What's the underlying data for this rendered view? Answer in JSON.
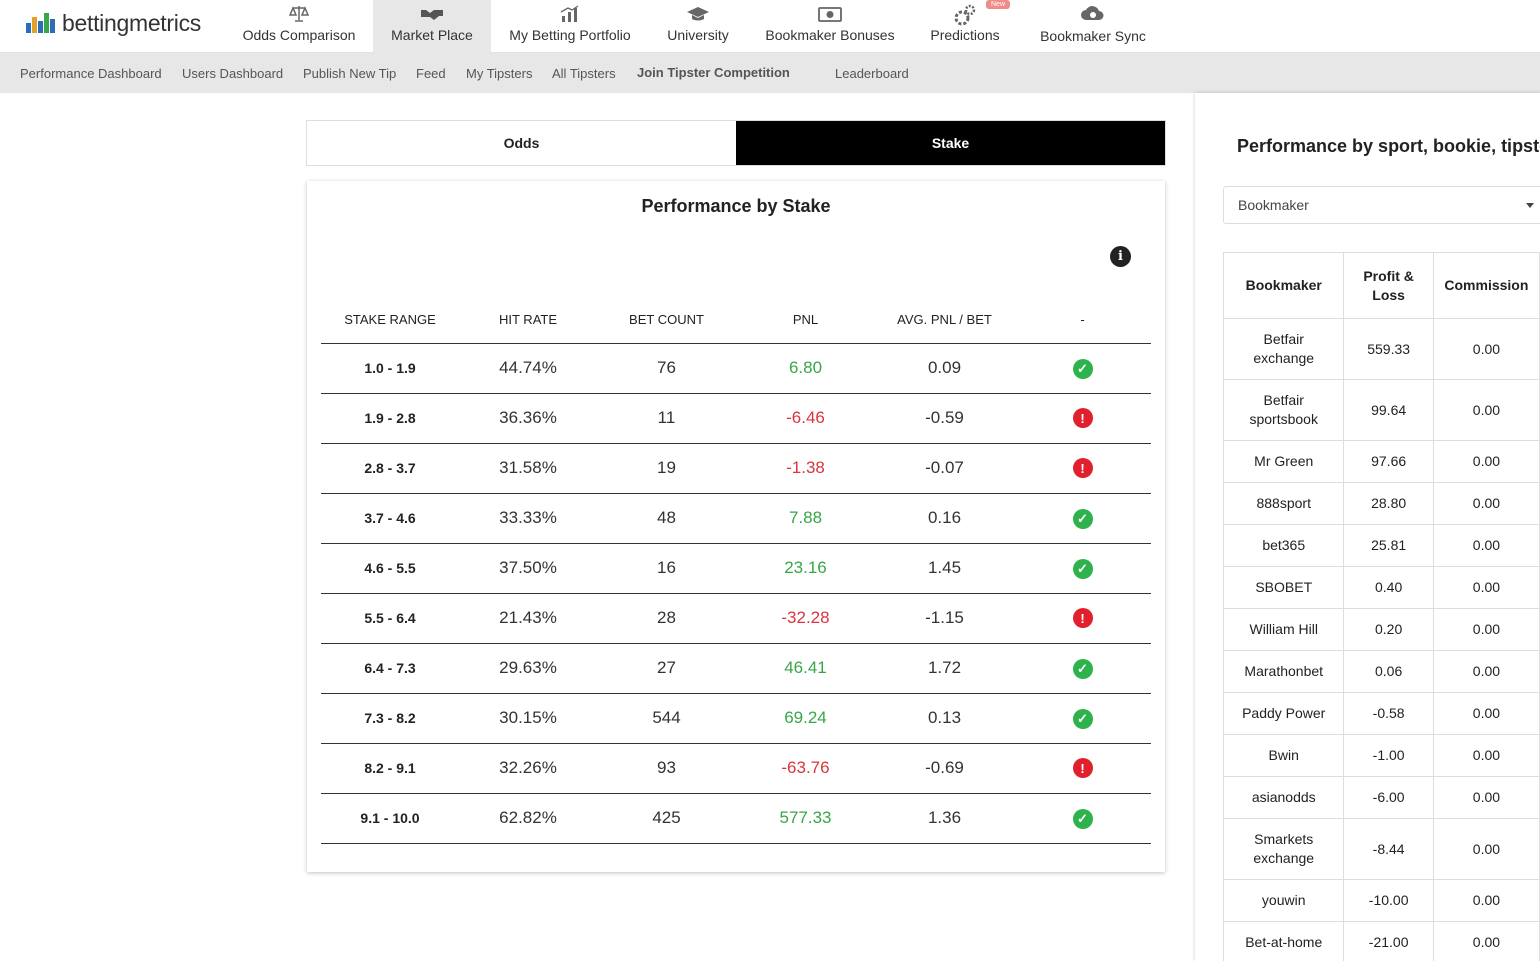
{
  "brand": {
    "name": "bettingmetrics"
  },
  "top_nav": [
    {
      "label": "Odds Comparison",
      "icon": "scale-icon"
    },
    {
      "label": "Market Place",
      "icon": "handshake-icon",
      "active": true
    },
    {
      "label": "My Betting Portfolio",
      "icon": "chart-icon"
    },
    {
      "label": "University",
      "icon": "graduation-cap-icon"
    },
    {
      "label": "Bookmaker Bonuses",
      "icon": "banknote-icon"
    },
    {
      "label": "Predictions",
      "icon": "gears-icon",
      "badge": "New"
    },
    {
      "label": "Bookmaker Sync",
      "icon": "cloud-icon"
    }
  ],
  "sub_nav": [
    "Performance Dashboard",
    "Users Dashboard",
    "Publish New Tip",
    "Feed",
    "My Tipsters",
    "All Tipsters",
    "Join Tipster Competition",
    "Leaderboard"
  ],
  "toggle": {
    "odds": "Odds",
    "stake": "Stake",
    "selected": "Stake"
  },
  "stake_card": {
    "title": "Performance by Stake",
    "headers": [
      "STAKE RANGE",
      "HIT RATE",
      "BET COUNT",
      "PNL",
      "AVG. PNL / BET",
      "-"
    ],
    "rows": [
      {
        "range": "1.0 - 1.9",
        "hit": "44.74%",
        "count": "76",
        "pnl": "6.80",
        "avg": "0.09",
        "ok": true
      },
      {
        "range": "1.9 - 2.8",
        "hit": "36.36%",
        "count": "11",
        "pnl": "-6.46",
        "avg": "-0.59",
        "ok": false
      },
      {
        "range": "2.8 - 3.7",
        "hit": "31.58%",
        "count": "19",
        "pnl": "-1.38",
        "avg": "-0.07",
        "ok": false
      },
      {
        "range": "3.7 - 4.6",
        "hit": "33.33%",
        "count": "48",
        "pnl": "7.88",
        "avg": "0.16",
        "ok": true
      },
      {
        "range": "4.6 - 5.5",
        "hit": "37.50%",
        "count": "16",
        "pnl": "23.16",
        "avg": "1.45",
        "ok": true
      },
      {
        "range": "5.5 - 6.4",
        "hit": "21.43%",
        "count": "28",
        "pnl": "-32.28",
        "avg": "-1.15",
        "ok": false
      },
      {
        "range": "6.4 - 7.3",
        "hit": "29.63%",
        "count": "27",
        "pnl": "46.41",
        "avg": "1.72",
        "ok": true
      },
      {
        "range": "7.3 - 8.2",
        "hit": "30.15%",
        "count": "544",
        "pnl": "69.24",
        "avg": "0.13",
        "ok": true
      },
      {
        "range": "8.2 - 9.1",
        "hit": "32.26%",
        "count": "93",
        "pnl": "-63.76",
        "avg": "-0.69",
        "ok": false
      },
      {
        "range": "9.1 - 10.0",
        "hit": "62.82%",
        "count": "425",
        "pnl": "577.33",
        "avg": "1.36",
        "ok": true
      }
    ]
  },
  "right_panel": {
    "title": "Performance by sport, bookie, tipster",
    "select_value": "Bookmaker",
    "headers": [
      "Bookmaker",
      "Profit & Loss",
      "Commission"
    ],
    "rows": [
      {
        "name": "Betfair exchange",
        "pl": "559.33",
        "commission": "0.00",
        "tall": true
      },
      {
        "name": "Betfair sportsbook",
        "pl": "99.64",
        "commission": "0.00",
        "tall": true
      },
      {
        "name": "Mr Green",
        "pl": "97.66",
        "commission": "0.00"
      },
      {
        "name": "888sport",
        "pl": "28.80",
        "commission": "0.00"
      },
      {
        "name": "bet365",
        "pl": "25.81",
        "commission": "0.00"
      },
      {
        "name": "SBOBET",
        "pl": "0.40",
        "commission": "0.00"
      },
      {
        "name": "William Hill",
        "pl": "0.20",
        "commission": "0.00"
      },
      {
        "name": "Marathonbet",
        "pl": "0.06",
        "commission": "0.00"
      },
      {
        "name": "Paddy Power",
        "pl": "-0.58",
        "commission": "0.00"
      },
      {
        "name": "Bwin",
        "pl": "-1.00",
        "commission": "0.00"
      },
      {
        "name": "asianodds",
        "pl": "-6.00",
        "commission": "0.00"
      },
      {
        "name": "Smarkets exchange",
        "pl": "-8.44",
        "commission": "0.00",
        "tall": true
      },
      {
        "name": "youwin",
        "pl": "-10.00",
        "commission": "0.00"
      },
      {
        "name": "Bet-at-home",
        "pl": "-21.00",
        "commission": "0.00"
      }
    ]
  },
  "colors": {
    "positive": "#3aa647",
    "negative": "#d9363e",
    "ok": "#2eb24b",
    "bad": "#e0202c"
  }
}
